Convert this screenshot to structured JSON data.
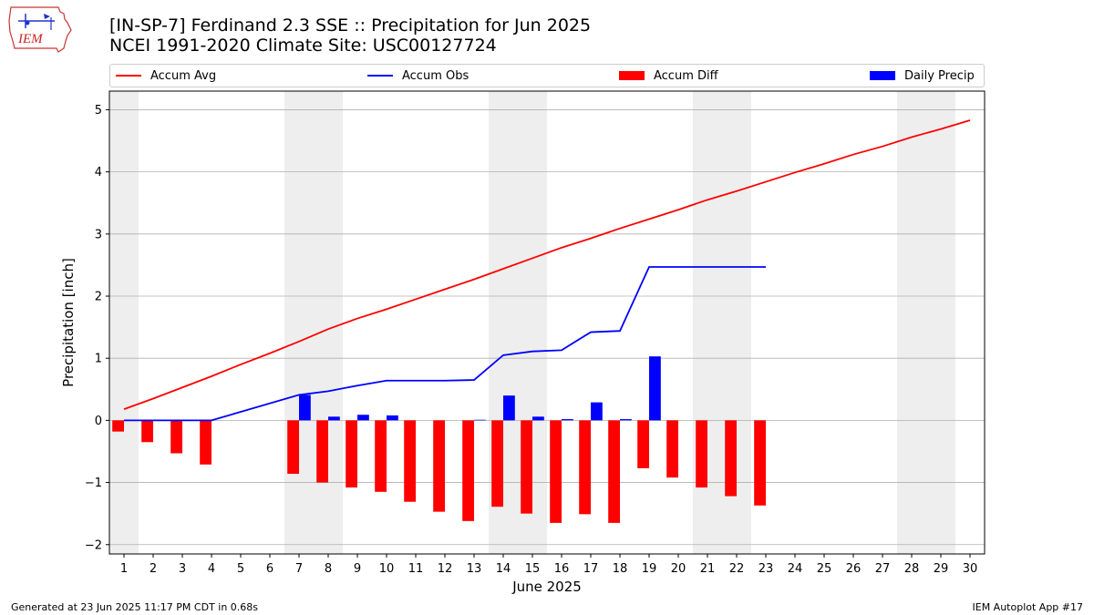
{
  "header": {
    "title_line1": "[IN-SP-7] Ferdinand 2.3 SSE :: Precipitation for Jun 2025",
    "title_line2": "NCEI 1991-2020 Climate Site: USC00127724"
  },
  "logo": {
    "text": "IEM"
  },
  "legend": {
    "items": [
      {
        "label": "Accum Avg",
        "color": "#ff0000",
        "kind": "line"
      },
      {
        "label": "Accum Obs",
        "color": "#0000ff",
        "kind": "line"
      },
      {
        "label": "Accum Diff",
        "color": "#ff0000",
        "kind": "bar"
      },
      {
        "label": "Daily Precip",
        "color": "#0000ff",
        "kind": "bar"
      }
    ]
  },
  "footer": {
    "left": "Generated at 23 Jun 2025 11:17 PM CDT in 0.68s",
    "right": "IEM Autoplot App #17"
  },
  "chart_data": {
    "type": "bar",
    "title": "[IN-SP-7] Ferdinand 2.3 SSE :: Precipitation for Jun 2025",
    "xlabel": "June 2025",
    "ylabel": "Precipitation [inch]",
    "xlim": [
      0.5,
      30.5
    ],
    "ylim": [
      -2.15,
      5.3
    ],
    "x_ticks": [
      1,
      2,
      3,
      4,
      5,
      6,
      7,
      8,
      9,
      10,
      11,
      12,
      13,
      14,
      15,
      16,
      17,
      18,
      19,
      20,
      21,
      22,
      23,
      24,
      25,
      26,
      27,
      28,
      29,
      30
    ],
    "y_ticks": [
      -2,
      -1,
      0,
      1,
      2,
      3,
      4,
      5
    ],
    "grid": "horizontal",
    "legend_position": "top",
    "weekend_shading": [
      [
        0.5,
        1.5
      ],
      [
        6.5,
        8.5
      ],
      [
        13.5,
        15.5
      ],
      [
        20.5,
        22.5
      ],
      [
        27.5,
        29.5
      ]
    ],
    "series": [
      {
        "name": "Accum Avg",
        "kind": "line",
        "color": "#ff0000",
        "x": [
          1,
          2,
          3,
          4,
          5,
          6,
          7,
          8,
          9,
          10,
          11,
          12,
          13,
          14,
          15,
          16,
          17,
          18,
          19,
          20,
          21,
          22,
          23,
          24,
          25,
          26,
          27,
          28,
          29,
          30
        ],
        "values": [
          0.18,
          0.35,
          0.53,
          0.71,
          0.9,
          1.08,
          1.27,
          1.47,
          1.64,
          1.79,
          1.95,
          2.11,
          2.27,
          2.44,
          2.61,
          2.78,
          2.93,
          3.09,
          3.24,
          3.39,
          3.55,
          3.69,
          3.84,
          3.99,
          4.13,
          4.28,
          4.41,
          4.56,
          4.69,
          4.83
        ]
      },
      {
        "name": "Accum Obs",
        "kind": "line",
        "color": "#0000ff",
        "x": [
          1,
          2,
          3,
          4,
          7,
          8,
          9,
          10,
          11,
          12,
          13,
          14,
          15,
          16,
          17,
          18,
          19,
          20,
          21,
          22,
          23
        ],
        "values": [
          0.0,
          0.0,
          0.0,
          0.0,
          0.41,
          0.47,
          0.56,
          0.64,
          0.64,
          0.64,
          0.65,
          1.05,
          1.11,
          1.13,
          1.42,
          1.44,
          2.47,
          2.47,
          2.47,
          2.47,
          2.47
        ]
      },
      {
        "name": "Accum Diff",
        "kind": "bar",
        "color": "#ff0000",
        "x": [
          1,
          2,
          3,
          4,
          7,
          8,
          9,
          10,
          11,
          12,
          13,
          14,
          15,
          16,
          17,
          18,
          19,
          20,
          21,
          22,
          23
        ],
        "values": [
          -0.18,
          -0.35,
          -0.53,
          -0.71,
          -0.86,
          -1.0,
          -1.08,
          -1.15,
          -1.31,
          -1.47,
          -1.62,
          -1.39,
          -1.5,
          -1.65,
          -1.51,
          -1.65,
          -0.77,
          -0.92,
          -1.08,
          -1.22,
          -1.37
        ]
      },
      {
        "name": "Daily Precip",
        "kind": "bar",
        "color": "#0000ff",
        "x": [
          1,
          2,
          3,
          4,
          7,
          8,
          9,
          10,
          11,
          12,
          13,
          14,
          15,
          16,
          17,
          18,
          19,
          20,
          21,
          22,
          23
        ],
        "values": [
          0.0,
          0.0,
          0.0,
          0.0,
          0.41,
          0.06,
          0.09,
          0.08,
          0.0,
          0.0,
          0.01,
          0.4,
          0.06,
          0.02,
          0.29,
          0.02,
          1.03,
          0.0,
          0.0,
          0.0,
          0.0
        ]
      }
    ]
  }
}
